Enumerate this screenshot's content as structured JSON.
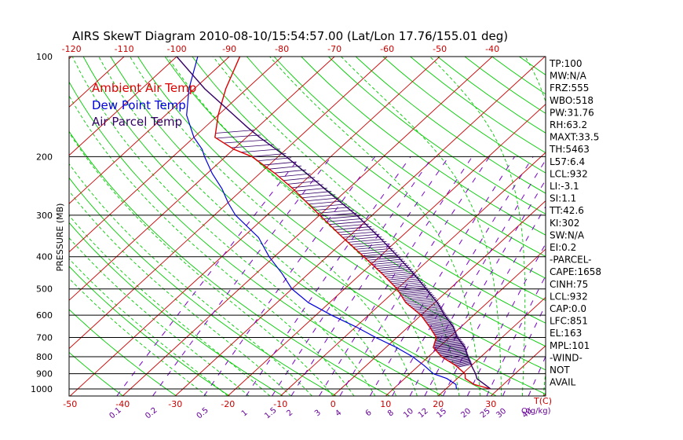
{
  "title": "AIRS SkewT Diagram 2010-08-10/15:54:57.00 (Lat/Lon 17.76/155.01 deg)",
  "legend": [
    {
      "label": "Ambient Air Temp",
      "color": "#dd0000"
    },
    {
      "label": "Dew Point Temp",
      "color": "#0000dd"
    },
    {
      "label": "Air Parcel Temp",
      "color": "#330066"
    }
  ],
  "colors": {
    "isotherm": "#cc0000",
    "dry_adiabat": "#00cc00",
    "moist_adiabat": "#00cc00",
    "mixing_ratio": "#7a00cc",
    "isobar": "#000000",
    "axis_labels_temp": "#cc0000",
    "axis_labels_mixing": "#660099"
  },
  "chart_data": {
    "type": "skewt",
    "title": "AIRS SkewT Diagram 2010-08-10/15:54:57.00 (Lat/Lon 17.76/155.01 deg)",
    "ylabel": "PRESSURE (MB)",
    "xlabel": "T(C)",
    "mixing_ratio_unit": "Q(g/kg)",
    "pressure_range": [
      1050,
      100
    ],
    "pressure_ticks": [
      100,
      200,
      300,
      400,
      500,
      600,
      700,
      800,
      900,
      1000
    ],
    "pressure_tick_labels": [
      "100",
      "200",
      "300",
      "400",
      "500",
      "600",
      "700",
      "800",
      "900",
      "1000"
    ],
    "bottom_temp_ticks": [
      -50,
      -40,
      -30,
      -20,
      -10,
      0,
      10,
      20,
      30
    ],
    "bottom_temp_tick_labels": [
      "-50",
      "-40",
      "-30",
      "-20",
      "-10",
      "0",
      "10",
      "20",
      "30"
    ],
    "top_temp_ticks": [
      -120,
      -110,
      -100,
      -90,
      -80,
      -70,
      -60,
      -50,
      -40
    ],
    "top_temp_tick_labels": [
      "-120",
      "-110",
      "-100",
      "-90",
      "-80",
      "-70",
      "-60",
      "-50",
      "-40"
    ],
    "mixing_ratio_lines": [
      0.1,
      0.2,
      0.5,
      1,
      1.5,
      2,
      3,
      4,
      6,
      8,
      10,
      12,
      15,
      20,
      25,
      30,
      40
    ],
    "mixing_ratio_labels": [
      "0.1",
      "0.2",
      "0.5",
      "1",
      "1.5",
      "2",
      "3",
      "4",
      "6",
      "8",
      "10",
      "12",
      "15",
      "20",
      "25",
      "30",
      "40"
    ],
    "ambient_temp": {
      "name": "Ambient Air Temp",
      "pressure": [
        1000,
        970,
        930,
        900,
        850,
        800,
        750,
        700,
        650,
        600,
        550,
        500,
        450,
        400,
        350,
        300,
        275,
        250,
        225,
        200,
        190,
        175,
        150,
        125,
        100
      ],
      "temp": [
        28.5,
        24.5,
        21.5,
        20.5,
        17.0,
        12.5,
        9.0,
        7.5,
        4.0,
        0.0,
        -5.5,
        -10.0,
        -16.0,
        -23.0,
        -31.0,
        -40.0,
        -45.0,
        -50.5,
        -57.0,
        -65.0,
        -70.0,
        -76.0,
        -80.0,
        -84.0,
        -88.0
      ]
    },
    "dewpoint": {
      "name": "Dew Point Temp",
      "pressure": [
        1000,
        970,
        930,
        900,
        850,
        800,
        750,
        700,
        650,
        600,
        550,
        500,
        450,
        400,
        350,
        300,
        275,
        250,
        225,
        200,
        190,
        175,
        150,
        125,
        100
      ],
      "temp": [
        22.0,
        21.0,
        18.0,
        14.5,
        11.0,
        7.0,
        2.0,
        -4.0,
        -10.0,
        -17.0,
        -24.0,
        -30.0,
        -35.0,
        -41.0,
        -47.0,
        -56.0,
        -60.0,
        -64.0,
        -69.0,
        -74.0,
        -76.0,
        -80.0,
        -86.0,
        -91.0,
        -96.0
      ]
    },
    "parcel": {
      "name": "Air Parcel Temp",
      "pressure": [
        1000,
        970,
        932,
        900,
        850,
        800,
        750,
        700,
        650,
        600,
        550,
        500,
        450,
        400,
        350,
        300,
        275,
        250,
        225,
        200,
        175,
        163,
        150,
        125,
        100
      ],
      "temp": [
        28.5,
        26.5,
        23.8,
        22.5,
        20.0,
        17.5,
        15.0,
        11.5,
        8.5,
        4.5,
        0.5,
        -4.5,
        -10.0,
        -16.5,
        -24.0,
        -33.0,
        -38.5,
        -44.5,
        -51.0,
        -58.5,
        -67.5,
        -72.0,
        -77.0,
        -88.0,
        -100.0
      ]
    },
    "indices": [
      "TP:100",
      "MW:N/A",
      "FRZ:555",
      "WBO:518",
      "PW:31.76",
      "RH:63.2",
      "MAXT:33.5",
      "TH:5463",
      "L57:6.4",
      "LCL:932",
      "LI:-3.1",
      "SI:1.1",
      "TT:42.6",
      "KI:302",
      "SW:N/A",
      "EI:0.2",
      "-PARCEL-",
      "CAPE:1658",
      "CINH:75",
      "LCL:932",
      "CAP:0.0",
      "LFC:851",
      "EL:163",
      "MPL:101",
      "-WIND-",
      "NOT",
      "AVAIL"
    ]
  }
}
